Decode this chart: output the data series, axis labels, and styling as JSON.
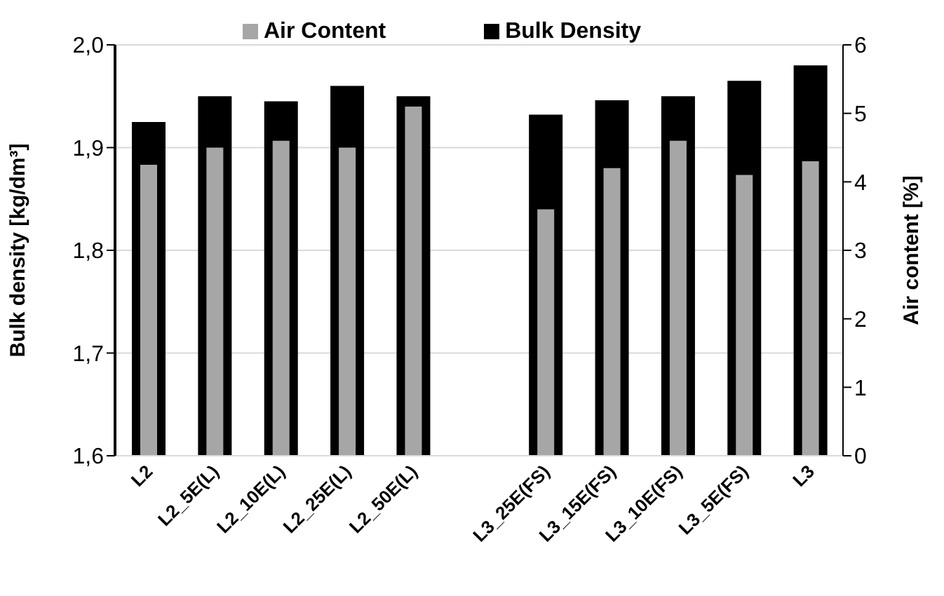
{
  "chart_data": {
    "type": "bar",
    "categories": [
      "L2",
      "L2_5E(L)",
      "L2_10E(L)",
      "L2_25E(L)",
      "L2_50E(L)",
      null,
      "L3_25E(FS)",
      "L3_15E(FS)",
      "L3_10E(FS)",
      "L3_5E(FS)",
      "L3"
    ],
    "series": [
      {
        "name": "Bulk Density",
        "color": "#000000",
        "values": [
          1.925,
          1.95,
          1.945,
          1.96,
          1.95,
          null,
          1.932,
          1.946,
          1.95,
          1.965,
          1.98
        ]
      },
      {
        "name": "Air Content",
        "color": "#a6a6a6",
        "axis": "y2",
        "values": [
          4.25,
          4.5,
          4.6,
          4.5,
          5.1,
          null,
          3.6,
          4.2,
          4.6,
          4.1,
          4.3
        ]
      }
    ],
    "ylabel": "Bulk density [kg/dm³]",
    "y2label": "Air content [%]",
    "ylim": [
      1.6,
      2.0
    ],
    "yticks": [
      {
        "value": 1.6,
        "label": "1,6"
      },
      {
        "value": 1.7,
        "label": "1,7"
      },
      {
        "value": 1.8,
        "label": "1,8"
      },
      {
        "value": 1.9,
        "label": "1,9"
      },
      {
        "value": 2.0,
        "label": "2,0"
      }
    ],
    "y2lim": [
      0,
      6
    ],
    "y2ticks": [
      0,
      1,
      2,
      3,
      4,
      5,
      6
    ],
    "grid": "y",
    "legend": "top"
  }
}
